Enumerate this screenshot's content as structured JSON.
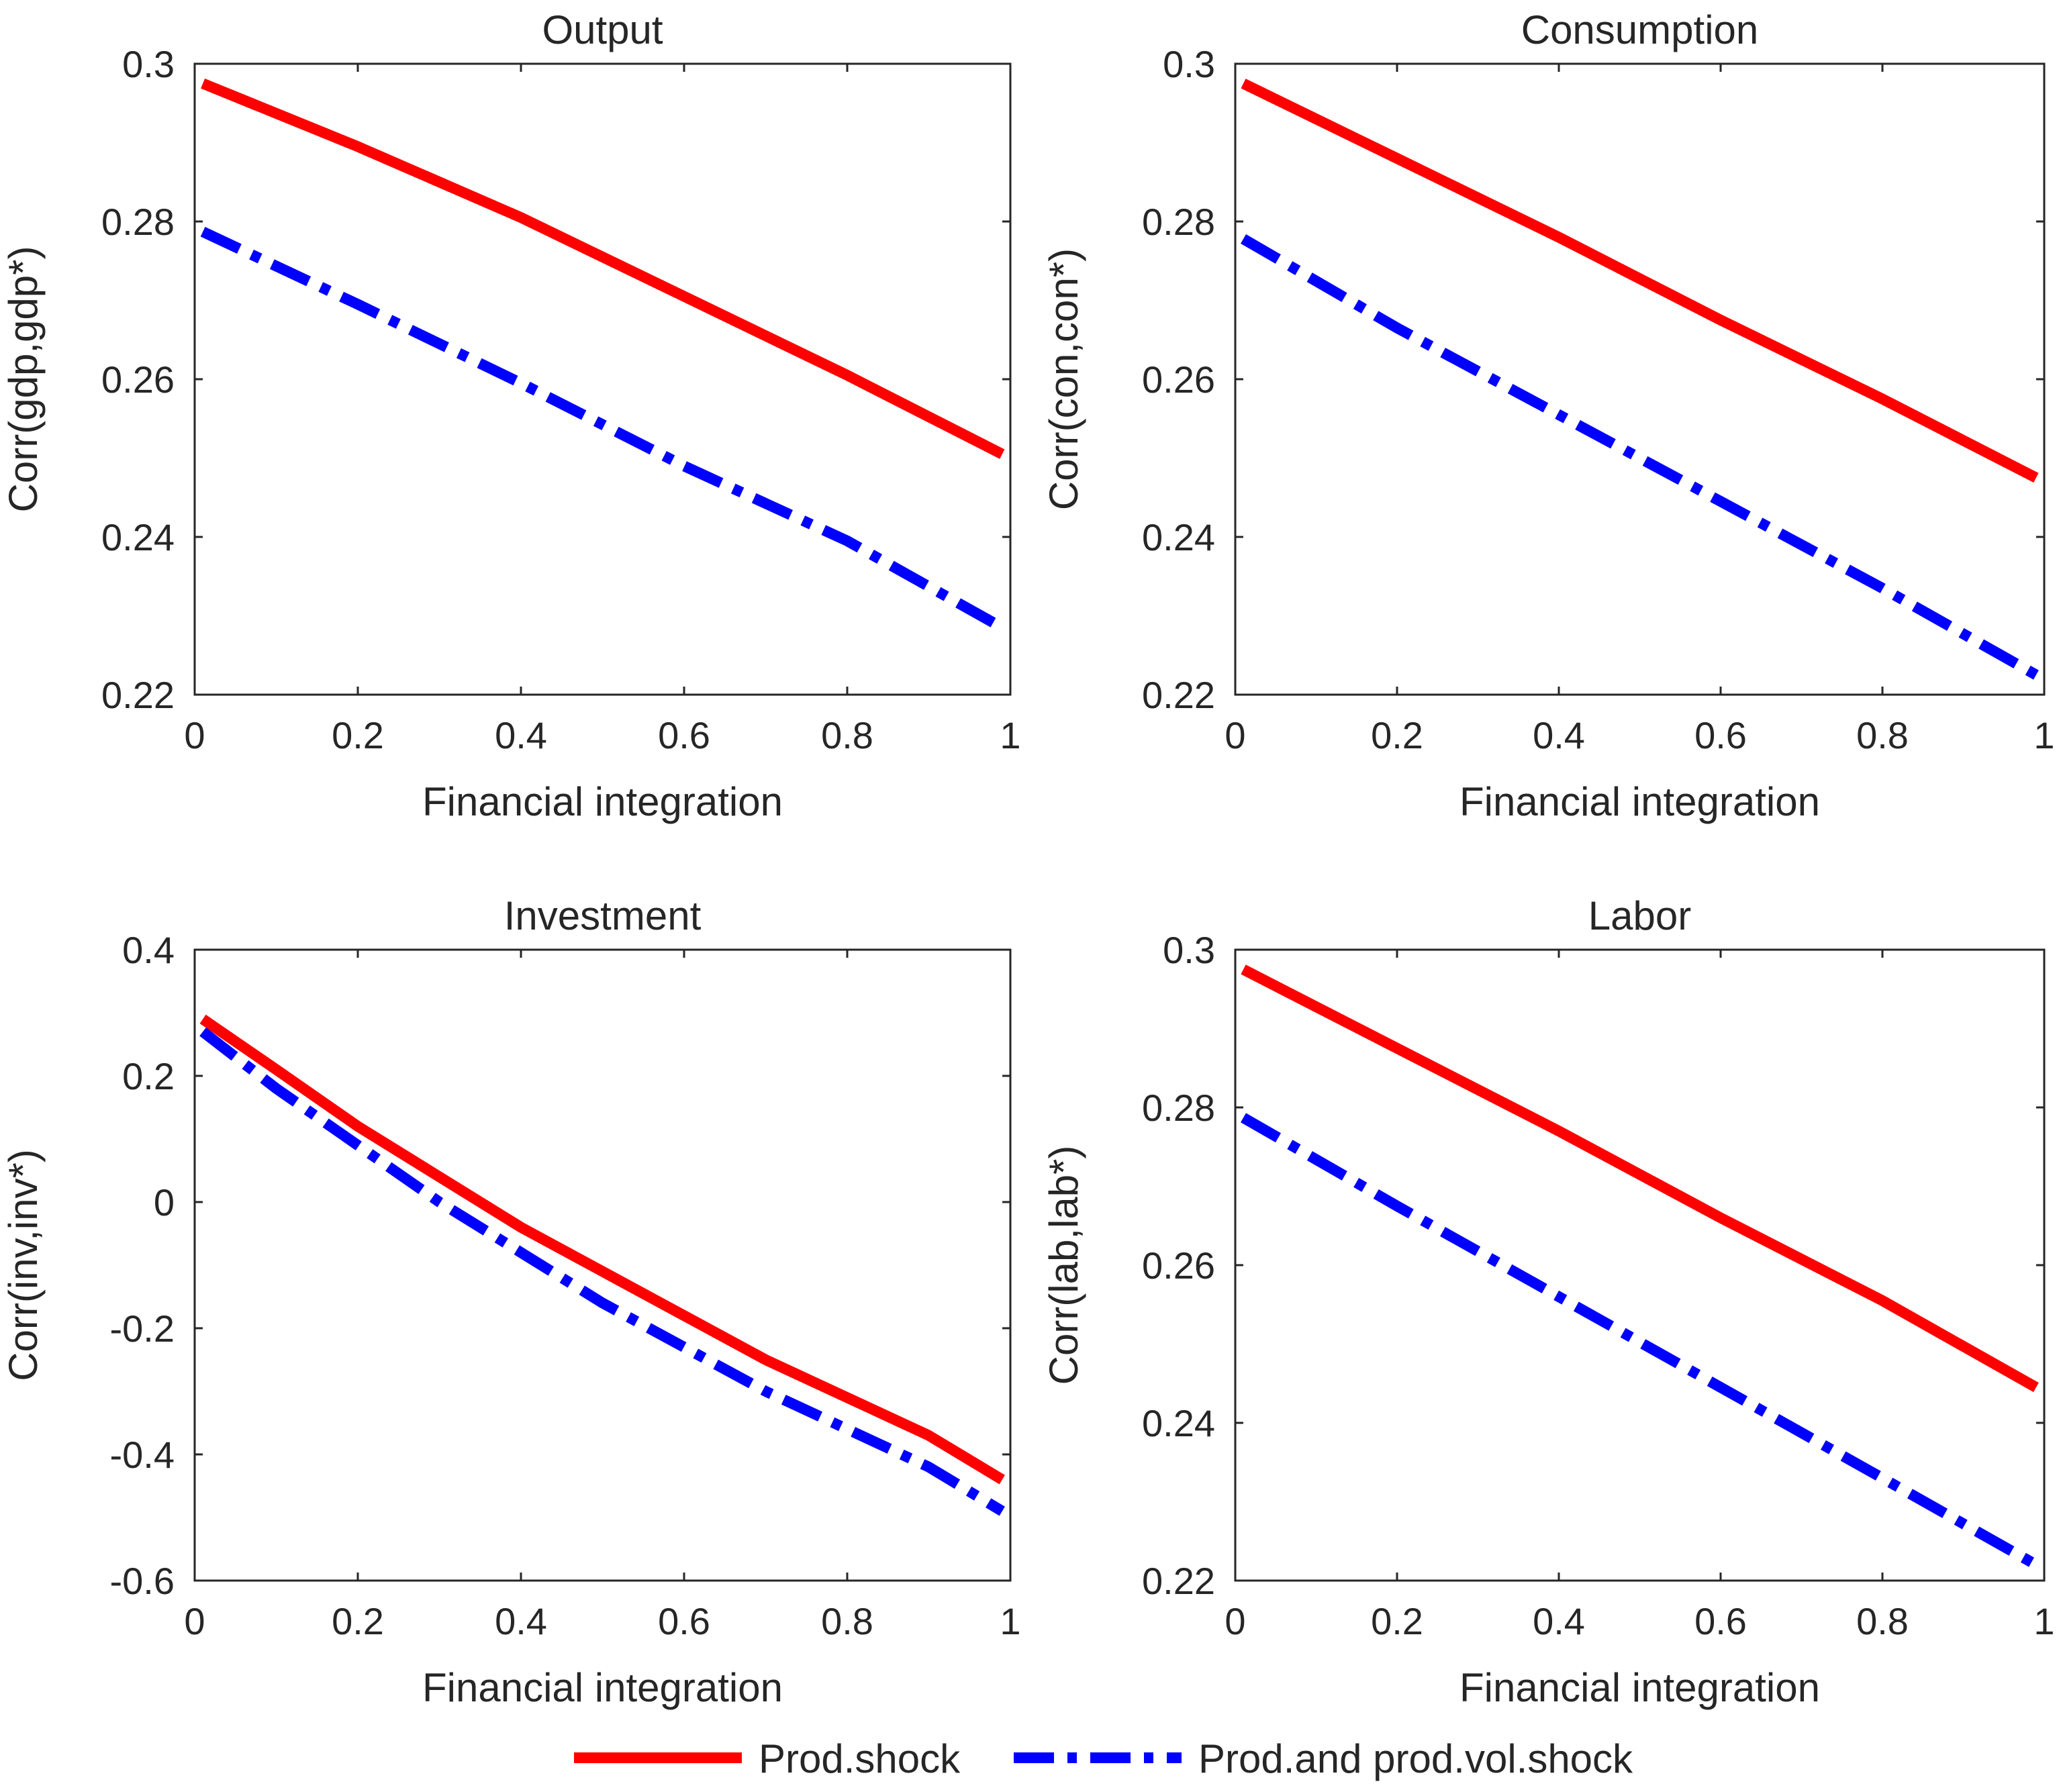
{
  "legend": [
    {
      "label": "Prod.shock",
      "color": "#ff0000",
      "style": "solid"
    },
    {
      "label": "Prod.and prod.vol.shock",
      "color": "#0000ff",
      "style": "dashdot"
    }
  ],
  "chart_data": [
    {
      "type": "line",
      "title": "Output",
      "xlabel": "Financial integration",
      "ylabel": "Corr(gdp,gdp*)",
      "xlim": [
        0,
        1
      ],
      "ylim": [
        0.22,
        0.3
      ],
      "xticks": [
        0,
        0.2,
        0.4,
        0.6,
        0.8,
        1
      ],
      "xtick_labels": [
        "0",
        "0.2",
        "0.4",
        "0.6",
        "0.8",
        "1"
      ],
      "yticks": [
        0.22,
        0.24,
        0.26,
        0.28,
        0.3
      ],
      "ytick_labels": [
        "0.22",
        "0.24",
        "0.26",
        "0.28",
        "0.3"
      ],
      "x": [
        0.01,
        0.2,
        0.4,
        0.6,
        0.8,
        0.99
      ],
      "series": [
        {
          "name": "Prod.shock",
          "values": [
            0.2975,
            0.2895,
            0.2805,
            0.2705,
            0.2605,
            0.2505
          ]
        },
        {
          "name": "Prod.and prod.vol.shock",
          "values": [
            0.2787,
            0.2695,
            0.2595,
            0.249,
            0.2395,
            0.2285
          ]
        }
      ]
    },
    {
      "type": "line",
      "title": "Consumption",
      "xlabel": "Financial integration",
      "ylabel": "Corr(con,con*)",
      "xlim": [
        0,
        1
      ],
      "ylim": [
        0.22,
        0.3
      ],
      "xticks": [
        0,
        0.2,
        0.4,
        0.6,
        0.8,
        1
      ],
      "xtick_labels": [
        "0",
        "0.2",
        "0.4",
        "0.6",
        "0.8",
        "1"
      ],
      "yticks": [
        0.22,
        0.24,
        0.26,
        0.28,
        0.3
      ],
      "ytick_labels": [
        "0.22",
        "0.24",
        "0.26",
        "0.28",
        "0.3"
      ],
      "x": [
        0.01,
        0.2,
        0.4,
        0.6,
        0.8,
        0.99
      ],
      "series": [
        {
          "name": "Prod.shock",
          "values": [
            0.2975,
            0.288,
            0.278,
            0.2675,
            0.2575,
            0.2475
          ]
        },
        {
          "name": "Prod.and prod.vol.shock",
          "values": [
            0.2778,
            0.2665,
            0.2555,
            0.2445,
            0.2335,
            0.2225
          ]
        }
      ]
    },
    {
      "type": "line",
      "title": "Investment",
      "xlabel": "Financial integration",
      "ylabel": "Corr(inv,inv*)",
      "xlim": [
        0,
        1
      ],
      "ylim": [
        -0.6,
        0.4
      ],
      "xticks": [
        0,
        0.2,
        0.4,
        0.6,
        0.8,
        1
      ],
      "xtick_labels": [
        "0",
        "0.2",
        "0.4",
        "0.6",
        "0.8",
        "1"
      ],
      "yticks": [
        -0.6,
        -0.4,
        -0.2,
        0,
        0.2,
        0.4
      ],
      "ytick_labels": [
        "-0.6",
        "-0.4",
        "-0.2",
        "0",
        "0.2",
        "0.4"
      ],
      "x": [
        0.01,
        0.1,
        0.2,
        0.3,
        0.4,
        0.5,
        0.6,
        0.7,
        0.8,
        0.9,
        0.99
      ],
      "series": [
        {
          "name": "Prod.shock",
          "values": [
            0.29,
            0.21,
            0.12,
            0.04,
            -0.04,
            -0.11,
            -0.18,
            -0.25,
            -0.31,
            -0.37,
            -0.44
          ]
        },
        {
          "name": "Prod.and prod.vol.shock",
          "values": [
            0.27,
            0.18,
            0.09,
            0.0,
            -0.08,
            -0.16,
            -0.23,
            -0.3,
            -0.36,
            -0.42,
            -0.49
          ]
        }
      ]
    },
    {
      "type": "line",
      "title": "Labor",
      "xlabel": "Financial integration",
      "ylabel": "Corr(lab,lab*)",
      "xlim": [
        0,
        1
      ],
      "ylim": [
        0.22,
        0.3
      ],
      "xticks": [
        0,
        0.2,
        0.4,
        0.6,
        0.8,
        1
      ],
      "xtick_labels": [
        "0",
        "0.2",
        "0.4",
        "0.6",
        "0.8",
        "1"
      ],
      "yticks": [
        0.22,
        0.24,
        0.26,
        0.28,
        0.3
      ],
      "ytick_labels": [
        "0.22",
        "0.24",
        "0.26",
        "0.28",
        "0.3"
      ],
      "x": [
        0.01,
        0.2,
        0.4,
        0.6,
        0.8,
        0.99
      ],
      "series": [
        {
          "name": "Prod.shock",
          "values": [
            0.2975,
            0.2875,
            0.277,
            0.266,
            0.2555,
            0.2445
          ]
        },
        {
          "name": "Prod.and prod.vol.shock",
          "values": [
            0.2787,
            0.2675,
            0.256,
            0.2445,
            0.233,
            0.222
          ]
        }
      ]
    }
  ]
}
